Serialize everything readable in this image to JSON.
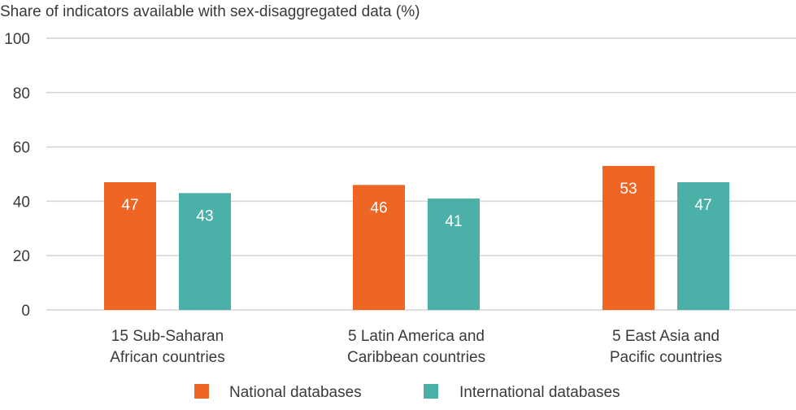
{
  "chart_data": {
    "type": "bar",
    "ylabel": "Share of indicators available with sex-disaggregated data (%)",
    "ylim": [
      0,
      100
    ],
    "yticks": [
      0,
      20,
      40,
      60,
      80,
      100
    ],
    "grid": true,
    "legend_position": "bottom-center",
    "categories": [
      [
        "15 Sub-Saharan",
        "African countries"
      ],
      [
        "5 Latin America and",
        "Caribbean countries"
      ],
      [
        "5 East Asia and",
        "Pacific countries"
      ]
    ],
    "series": [
      {
        "name": "National databases",
        "color": "#EE6524",
        "values": [
          47,
          46,
          53
        ]
      },
      {
        "name": "International databases",
        "color": "#4BB0A8",
        "values": [
          43,
          41,
          47
        ]
      }
    ],
    "colors": {
      "grid": "#D4D4D4",
      "text": "#3A3A3A",
      "data_label": "#FFFFFF"
    }
  }
}
